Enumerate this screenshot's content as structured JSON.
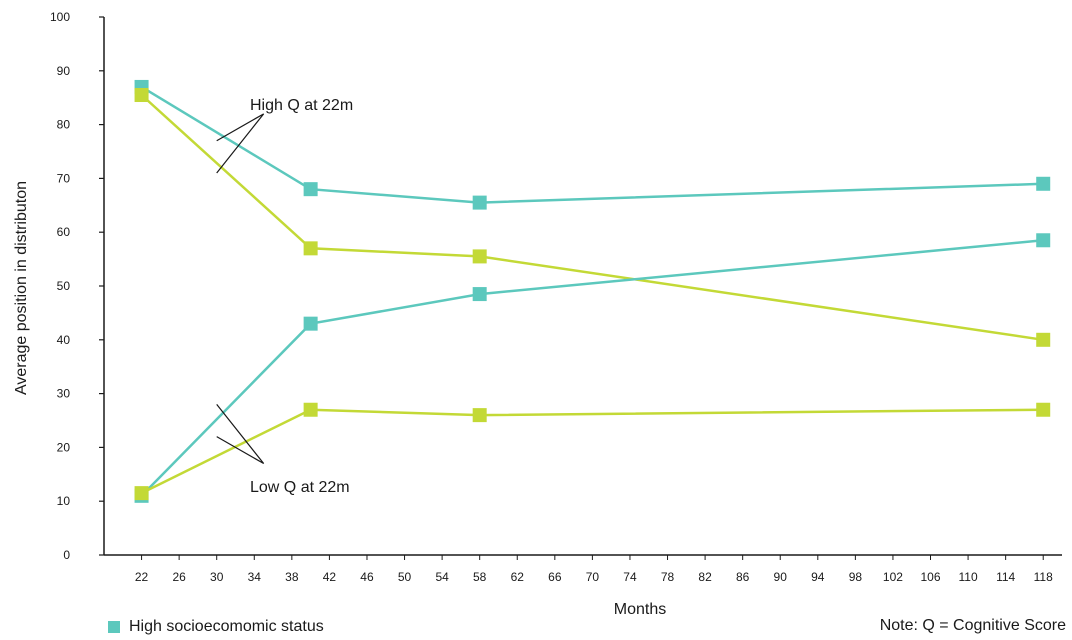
{
  "colors": {
    "teal": "#5cc8bd",
    "lime": "#c3d936",
    "axis": "#1a1a1a"
  },
  "chart_data": {
    "type": "line",
    "xlabel": "Months",
    "ylabel": "Average position in distributon",
    "ylim": [
      0,
      100
    ],
    "yticks": [
      0,
      10,
      20,
      30,
      40,
      50,
      60,
      70,
      80,
      90,
      100
    ],
    "xlim": [
      18,
      120
    ],
    "xticks": [
      22,
      26,
      30,
      34,
      38,
      42,
      46,
      50,
      54,
      58,
      62,
      66,
      70,
      74,
      78,
      82,
      86,
      90,
      94,
      98,
      102,
      106,
      110,
      114,
      118
    ],
    "series": [
      {
        "color": "teal",
        "group": "High Q at 22m",
        "x": [
          22,
          40,
          58,
          118
        ],
        "y": [
          87,
          68,
          65.5,
          69
        ]
      },
      {
        "color": "lime",
        "group": "High Q at 22m",
        "x": [
          22,
          40,
          58,
          118
        ],
        "y": [
          85.5,
          57,
          55.5,
          40
        ]
      },
      {
        "color": "teal",
        "group": "Low Q at 22m",
        "x": [
          22,
          40,
          58,
          118
        ],
        "y": [
          11,
          43,
          48.5,
          58.5
        ]
      },
      {
        "color": "lime",
        "group": "Low Q at 22m",
        "x": [
          22,
          40,
          58,
          118
        ],
        "y": [
          11.5,
          27,
          26,
          27
        ]
      }
    ],
    "annotations": [
      {
        "text": "High Q at 22m"
      },
      {
        "text": "Low Q at 22m"
      }
    ],
    "legend": [
      {
        "label": "High socioecomomic status",
        "color": "teal"
      }
    ],
    "note": "Note: Q = Cognitive Score"
  }
}
